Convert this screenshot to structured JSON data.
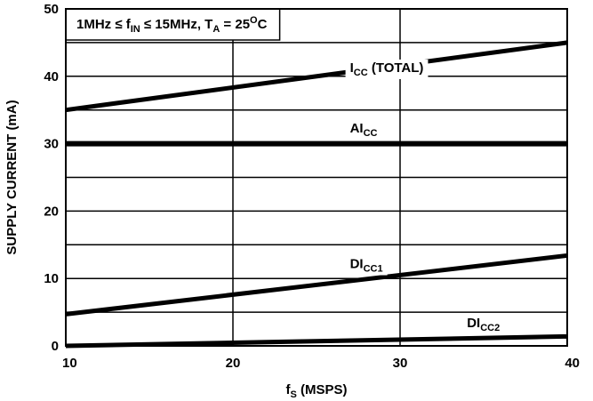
{
  "chart_data": {
    "type": "line",
    "title": "",
    "xlabel_main": "f",
    "xlabel_sub": "S",
    "xlabel_rest": " (MSPS)",
    "ylabel": "SUPPLY CURRENT (mA)",
    "xlim": [
      10,
      40
    ],
    "ylim": [
      0,
      50
    ],
    "x_ticks": [
      10,
      20,
      30,
      40
    ],
    "y_ticks": [
      0,
      10,
      20,
      30,
      40,
      50
    ],
    "grid": true,
    "conditions": {
      "p1": "1MHz ≤ f",
      "s1": "IN",
      "p2": " ≤ 15MHz, T",
      "s2": "A",
      "p3": " = 25",
      "sup": "O",
      "p4": "C"
    },
    "series": [
      {
        "name_main": "I",
        "name_sub": "CC",
        "name_rest": " (TOTAL)",
        "x": [
          10,
          40
        ],
        "y": [
          35,
          45
        ],
        "stroke": 5
      },
      {
        "name_main": "AI",
        "name_sub": "CC",
        "name_rest": "",
        "x": [
          10,
          40
        ],
        "y": [
          30,
          30
        ],
        "stroke": 6
      },
      {
        "name_main": "DI",
        "name_sub": "CC1",
        "name_rest": "",
        "x": [
          10,
          40
        ],
        "y": [
          4.7,
          13.4
        ],
        "stroke": 5
      },
      {
        "name_main": "DI",
        "name_sub": "CC2",
        "name_rest": "",
        "x": [
          10,
          40
        ],
        "y": [
          0,
          1.4
        ],
        "stroke": 5
      }
    ]
  }
}
